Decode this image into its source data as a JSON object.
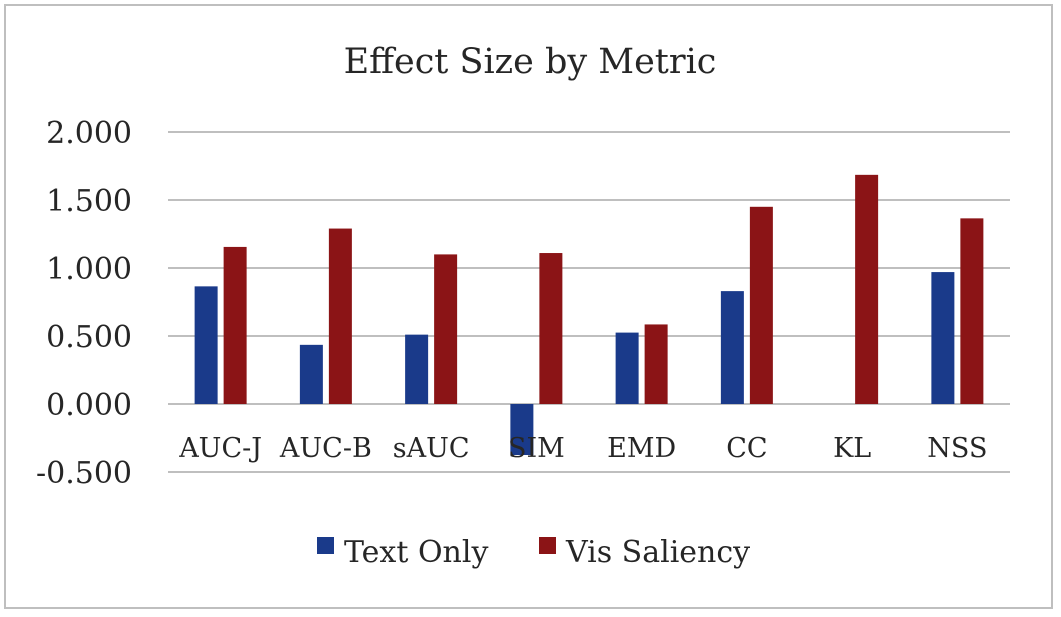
{
  "chart_data": {
    "type": "bar",
    "title": "Effect Size by Metric",
    "xlabel": "",
    "ylabel": "",
    "categories": [
      "AUC-J",
      "AUC-B",
      "sAUC",
      "SIM",
      "EMD",
      "CC",
      "KL",
      "NSS"
    ],
    "series": [
      {
        "name": "Text Only",
        "color": "#1a3a8a",
        "values": [
          0.865,
          0.435,
          0.51,
          -0.375,
          0.525,
          0.83,
          0.0,
          0.97
        ]
      },
      {
        "name": "Vis Saliency",
        "color": "#8b1416",
        "values": [
          1.155,
          1.29,
          1.1,
          1.11,
          0.585,
          1.45,
          1.685,
          1.365
        ]
      }
    ],
    "ylim": [
      -0.5,
      2.0
    ],
    "yticks": [
      -0.5,
      0.0,
      0.5,
      1.0,
      1.5,
      2.0
    ],
    "ytick_labels": [
      "-0.500",
      "0.000",
      "0.500",
      "1.000",
      "1.500",
      "2.000"
    ],
    "grid": true,
    "legend_position": "bottom"
  }
}
